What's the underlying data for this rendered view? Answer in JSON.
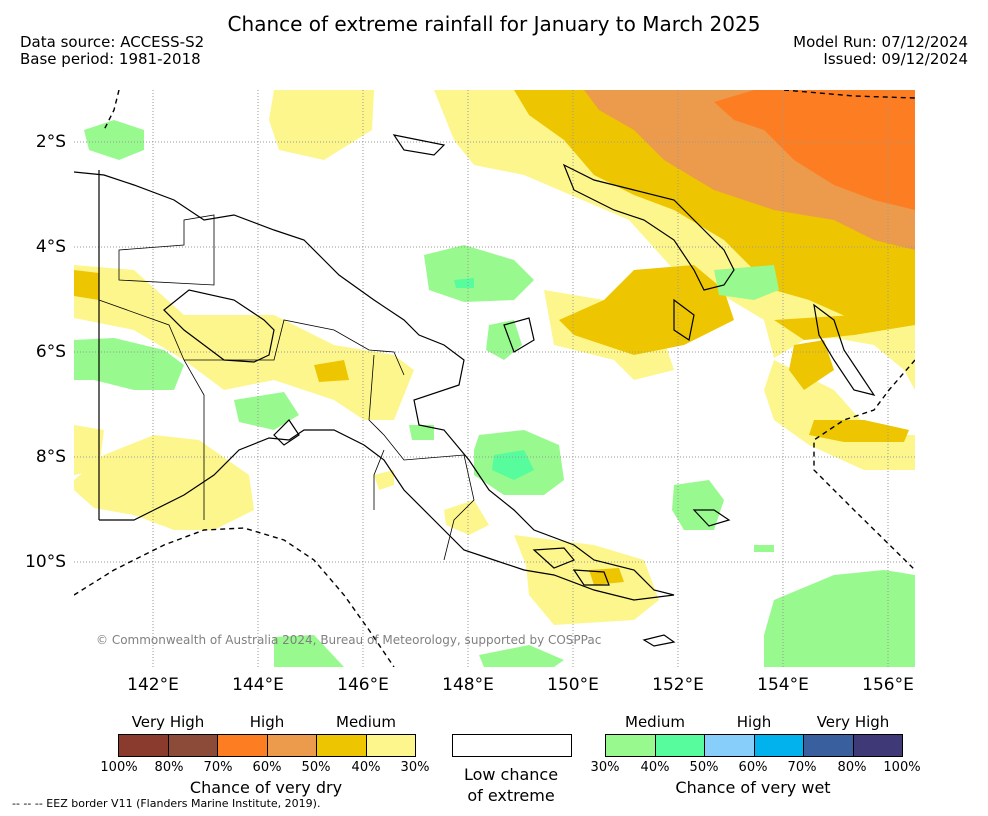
{
  "header": {
    "title": "Chance of extreme rainfall for January to March 2025",
    "data_source": "Data source: ACCESS-S2",
    "base_period": "Base period: 1981-2018",
    "model_run": "Model Run: 07/12/2024",
    "issued": "Issued: 09/12/2024"
  },
  "map": {
    "region": "Papua New Guinea",
    "lat_labels": [
      "2°S",
      "4°S",
      "6°S",
      "8°S",
      "10°S"
    ],
    "lon_labels": [
      "142°E",
      "144°E",
      "146°E",
      "148°E",
      "150°E",
      "152°E",
      "154°E",
      "156°E"
    ],
    "copyright": "© Commonwealth of Australia 2024, Bureau of Meteorology, supported by COSPPac"
  },
  "legend": {
    "dry": {
      "levels": [
        "Very High",
        "High",
        "Medium"
      ],
      "percents": [
        "100%",
        "80%",
        "70%",
        "60%",
        "50%",
        "40%",
        "30%"
      ],
      "colors": [
        "#8b3a2e",
        "#8c4b38",
        "#fd7e22",
        "#ec9a4b",
        "#edc500",
        "#fdf68c"
      ],
      "caption": "Chance of very dry"
    },
    "low": {
      "caption_line1": "Low chance",
      "caption_line2": "of extreme",
      "color": "#ffffff"
    },
    "wet": {
      "levels": [
        "Medium",
        "High",
        "Very High"
      ],
      "percents": [
        "30%",
        "40%",
        "50%",
        "60%",
        "70%",
        "80%",
        "100%"
      ],
      "colors": [
        "#98f98f",
        "#57fc9c",
        "#87cefa",
        "#02b2ec",
        "#3a5f9e",
        "#3f3a77"
      ],
      "caption": "Chance of very wet"
    },
    "eez_note": "--  --  -- EEZ border V11 (Flanders Marine Institute, 2019)."
  }
}
